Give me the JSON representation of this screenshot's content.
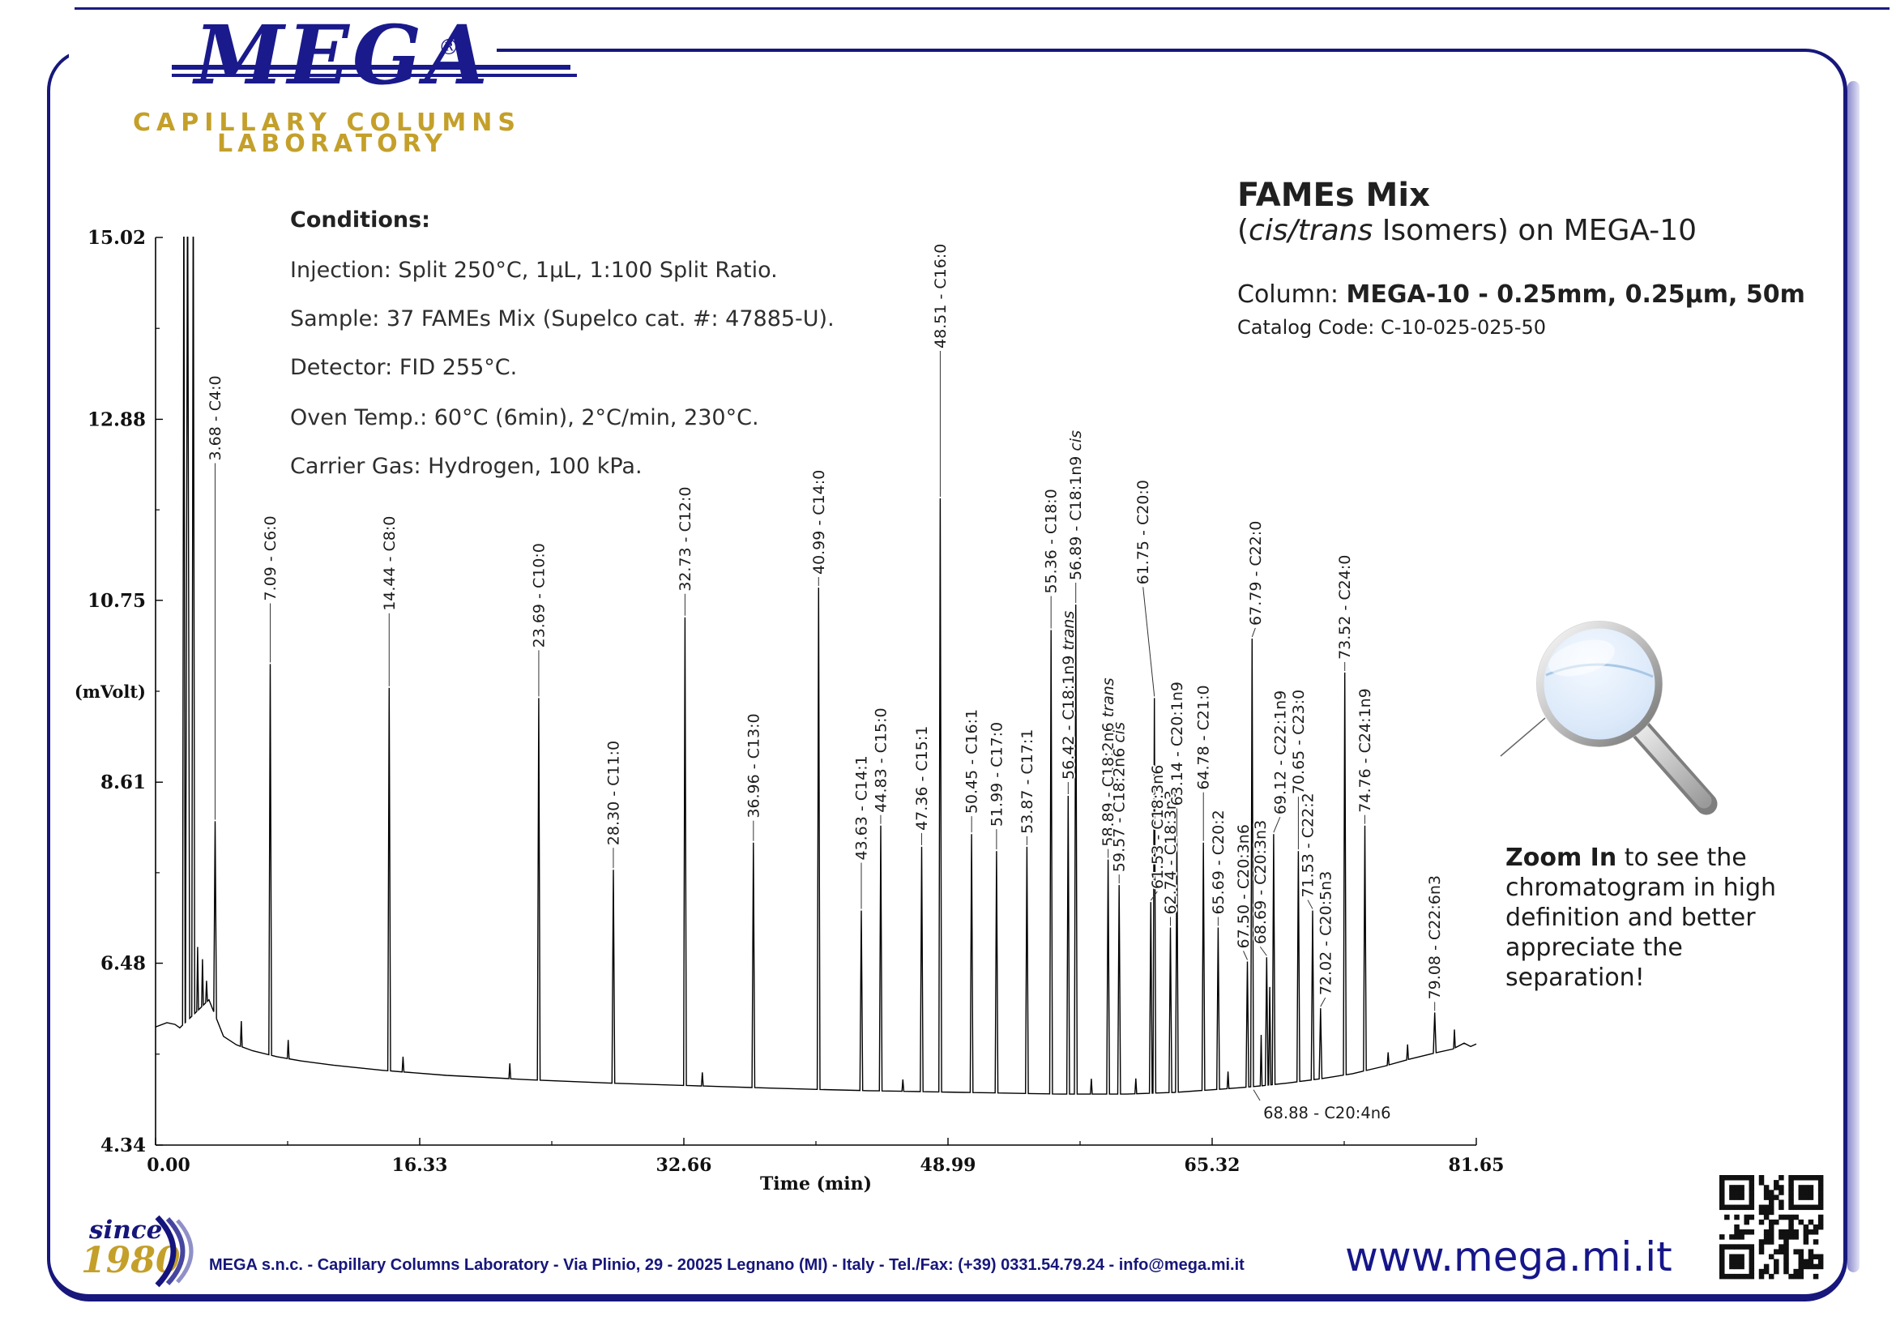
{
  "brand": {
    "name": "MEGA",
    "registered": "®",
    "tagline1": "CAPILLARY COLUMNS",
    "tagline2": "LABORATORY"
  },
  "colors": {
    "navy": "#1a1a8c",
    "gold": "#c4a02a",
    "trace": "#000000",
    "label_text": "#1c1c1c"
  },
  "conditions": {
    "heading": "Conditions:",
    "injection": "Injection: Split 250°C, 1μL, 1:100 Split Ratio.",
    "sample": "Sample: 37 FAMEs Mix (Supelco cat. #: 47885-U).",
    "detector": "Detector: FID 255°C.",
    "oven": "Oven Temp.: 60°C (6min), 2°C/min, 230°C.",
    "carrier": "Carrier Gas: Hydrogen, 100 kPa."
  },
  "title": {
    "product": "FAMEs Mix",
    "iso_pre": "(",
    "iso_italic": "cis/trans",
    "iso_post": " Isomers) on MEGA-10",
    "column_label": "Column: ",
    "column_value": "MEGA-10 - 0.25mm, 0.25μm, 50m",
    "catalog_code": "Catalog Code: C-10-025-025-50"
  },
  "zoom_note": {
    "line1_bold": "Zoom In",
    "line1_rest": " to see the",
    "line2": "chromatogram in high",
    "line3": "definition and better",
    "line4": "appreciate the separation!"
  },
  "footer": {
    "since_word": "since",
    "since_year": "1980",
    "address": "MEGA s.n.c. - Capillary Columns Laboratory - Via Plinio, 29 - 20025 Legnano (MI) - Italy - Tel./Fax: (+39) 0331.54.79.24 - info@mega.mi.it",
    "website": "www.mega.mi.it"
  },
  "chart_data": {
    "type": "line",
    "title": "",
    "xlabel": "Time (min)",
    "ylabel": "(mVolt)",
    "xlim": [
      0,
      81.65
    ],
    "ylim": [
      4.34,
      15.02
    ],
    "x_ticks": [
      "0.00",
      "16.33",
      "32.66",
      "48.99",
      "65.32",
      "81.65"
    ],
    "y_ticks": [
      "4.34",
      "6.48",
      "8.61",
      "10.75",
      "12.88",
      "15.02"
    ],
    "grid": false,
    "legend": "none",
    "baseline": [
      [
        0,
        5.73
      ],
      [
        0.7,
        5.78
      ],
      [
        1.2,
        5.76
      ],
      [
        1.5,
        5.72
      ],
      [
        3.3,
        6.05
      ],
      [
        4.2,
        5.62
      ],
      [
        5,
        5.52
      ],
      [
        6,
        5.45
      ],
      [
        7.5,
        5.38
      ],
      [
        9,
        5.33
      ],
      [
        11,
        5.28
      ],
      [
        14,
        5.22
      ],
      [
        18,
        5.16
      ],
      [
        23,
        5.11
      ],
      [
        28,
        5.07
      ],
      [
        33,
        5.04
      ],
      [
        38,
        5.01
      ],
      [
        44,
        4.98
      ],
      [
        50,
        4.96
      ],
      [
        56,
        4.94
      ],
      [
        60,
        4.94
      ],
      [
        63,
        4.96
      ],
      [
        66,
        5.0
      ],
      [
        68,
        5.03
      ],
      [
        70,
        5.07
      ],
      [
        72,
        5.12
      ],
      [
        74,
        5.18
      ],
      [
        76,
        5.27
      ],
      [
        77.5,
        5.35
      ],
      [
        79,
        5.42
      ],
      [
        80.2,
        5.47
      ],
      [
        80.9,
        5.54
      ],
      [
        81.3,
        5.5
      ],
      [
        81.65,
        5.53
      ]
    ],
    "solvent_peaks": [
      [
        1.75,
        16.0,
        0.08
      ],
      [
        1.98,
        16.0,
        0.13
      ],
      [
        2.33,
        16.0,
        0.09
      ]
    ],
    "noise_spikes": [
      [
        2.6,
        0.75
      ],
      [
        2.9,
        0.55
      ],
      [
        3.15,
        0.25
      ],
      [
        5.3,
        0.3
      ],
      [
        8.2,
        0.22
      ],
      [
        15.3,
        0.18
      ],
      [
        21.9,
        0.18
      ],
      [
        33.8,
        0.16
      ],
      [
        46.2,
        0.14
      ],
      [
        57.85,
        0.18
      ],
      [
        60.6,
        0.18
      ],
      [
        66.3,
        0.2
      ],
      [
        68.35,
        0.6
      ],
      [
        76.2,
        0.15
      ],
      [
        77.4,
        0.18
      ],
      [
        80.3,
        0.22
      ]
    ],
    "peaks": [
      {
        "t": 3.68,
        "name": "C4:0",
        "h": 8.15,
        "lead": 445
      },
      {
        "t": 7.09,
        "name": "C6:0",
        "h": 10.0,
        "lead": 78
      },
      {
        "t": 14.44,
        "name": "C8:0",
        "h": 9.72,
        "lead": 95
      },
      {
        "t": 23.69,
        "name": "C10:0",
        "h": 9.6,
        "lead": 62
      },
      {
        "t": 28.3,
        "name": "C11:0",
        "h": 7.58,
        "lead": 30
      },
      {
        "t": 32.73,
        "name": "C12:0",
        "h": 10.55,
        "lead": 32
      },
      {
        "t": 36.96,
        "name": "C13:0",
        "h": 7.9,
        "lead": 30
      },
      {
        "t": 40.99,
        "name": "C14:0",
        "h": 10.9,
        "lead": 16
      },
      {
        "t": 43.63,
        "name": "C14:1",
        "h": 7.1,
        "lead": 62
      },
      {
        "t": 44.83,
        "name": "C15:0",
        "h": 8.1,
        "lead": 16
      },
      {
        "t": 47.36,
        "name": "C15:1",
        "h": 7.85,
        "lead": 20
      },
      {
        "t": 48.51,
        "name": "C16:0",
        "h": 11.95,
        "lead": 185
      },
      {
        "t": 50.45,
        "name": "C16:1",
        "h": 8.0,
        "lead": 25
      },
      {
        "t": 51.99,
        "name": "C17:0",
        "h": 7.8,
        "lead": 30
      },
      {
        "t": 53.87,
        "name": "C17:1",
        "h": 7.85,
        "lead": 16
      },
      {
        "t": 55.36,
        "name": "C18:0",
        "h": 10.4,
        "lead": 45
      },
      {
        "t": 56.42,
        "name": "C18:1n9",
        "suffix": " trans",
        "h": 8.45,
        "lead": 20
      },
      {
        "t": 56.89,
        "name": "C18:1n9",
        "suffix": " cis",
        "h": 10.7,
        "lead": 30
      },
      {
        "t": 58.89,
        "name": "C18:2n6",
        "suffix": " trans",
        "h": 7.7,
        "lead": 16
      },
      {
        "t": 59.57,
        "name": "C18:2n6",
        "suffix": " cis",
        "h": 7.4,
        "lead": 16
      },
      {
        "t": 61.53,
        "name": "C18:3n6",
        "h": 7.2,
        "lead": 16,
        "dx": 8
      },
      {
        "t": 61.75,
        "name": "C20:0",
        "h": 9.6,
        "lead": 140,
        "dx": -14
      },
      {
        "t": 62.74,
        "name": "C18:3n3",
        "h": 6.9,
        "lead": 16
      },
      {
        "t": 63.14,
        "name": "C20:1n9",
        "h": 7.95,
        "lead": 40
      },
      {
        "t": 64.78,
        "name": "C21:0",
        "h": 7.9,
        "lead": 65
      },
      {
        "t": 65.69,
        "name": "C20:2",
        "h": 6.9,
        "lead": 16
      },
      {
        "t": 67.5,
        "name": "C20:3n6",
        "h": 6.5,
        "lead": 16,
        "dx": -5
      },
      {
        "t": 67.79,
        "name": "C22:0",
        "h": 10.3,
        "lead": 16,
        "dx": 4
      },
      {
        "t": 68.69,
        "name": "C20:3n3",
        "h": 6.55,
        "lead": 16,
        "dx": -8
      },
      {
        "t": 69.12,
        "name": "C22:1n9",
        "h": 8.0,
        "lead": 24,
        "dx": 8
      },
      {
        "t": 70.65,
        "name": "C23:0",
        "h": 7.8,
        "lead": 70
      },
      {
        "t": 71.53,
        "name": "C22:2",
        "h": 7.1,
        "lead": 16,
        "dx": -6
      },
      {
        "t": 72.02,
        "name": "C20:5n3",
        "h": 5.95,
        "lead": 16,
        "dx": 6
      },
      {
        "t": 73.52,
        "name": "C24:0",
        "h": 9.9,
        "lead": 16
      },
      {
        "t": 74.76,
        "name": "C24:1n9",
        "h": 8.1,
        "lead": 16
      },
      {
        "t": 79.08,
        "name": "C22:6n3",
        "h": 5.9,
        "lead": 16
      }
    ],
    "annotation": {
      "t": 68.88,
      "name": "C20:4n6",
      "h": 6.2
    }
  }
}
